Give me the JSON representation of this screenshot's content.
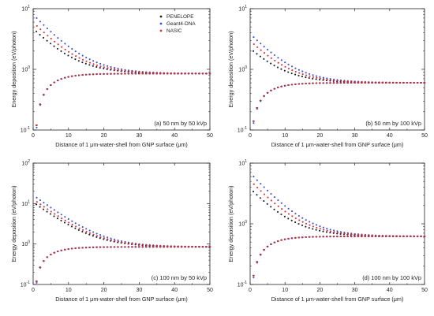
{
  "colors": {
    "penelope": "#1a1a2e",
    "geant4": "#3b4bd8",
    "nasic": "#d83030",
    "axis": "#222222"
  },
  "legend": {
    "position": "top-right of panel (a)",
    "entries": [
      "PENELOPE",
      "Geant4-DNA",
      "NASIC"
    ]
  },
  "chart_data": [
    {
      "type": "scatter",
      "yscale": "log",
      "grid": false,
      "panel_label": "(a) 50 nm by 50 kVp",
      "xlabel": "Distance of 1 μm-water-shell from GNP surface (μm)",
      "ylabel": "Energy deposition (eV/photon)",
      "xlim": [
        0,
        50
      ],
      "ylim": [
        0.1,
        10
      ],
      "xticks": [
        "0",
        "10",
        "20",
        "30",
        "40",
        "50"
      ],
      "yticks": [
        {
          "base": "10",
          "exp": "-1"
        },
        {
          "base": "10",
          "exp": "0"
        },
        {
          "base": "10",
          "exp": "1"
        }
      ],
      "x": [
        1,
        50
      ],
      "series": [
        {
          "name": "PENELOPE",
          "upper_start": 4.2,
          "lower_start": 0.12
        },
        {
          "name": "Geant4-DNA",
          "upper_start": 7.0,
          "lower_start": 0.11
        },
        {
          "name": "NASIC",
          "upper_start": 5.2,
          "lower_start": 0.12
        }
      ],
      "plateau": 0.85
    },
    {
      "type": "scatter",
      "yscale": "log",
      "grid": false,
      "panel_label": "(b) 50 nm by 100 kVp",
      "xlabel": "Distance of 1 μm-water-shell from GNP surface (μm)",
      "ylabel": "Energy deposition (eV/photon)",
      "xlim": [
        0,
        50
      ],
      "ylim": [
        0.1,
        10
      ],
      "xticks": [
        "0",
        "10",
        "20",
        "30",
        "40",
        "50"
      ],
      "yticks": [
        {
          "base": "10",
          "exp": "-1"
        },
        {
          "base": "10",
          "exp": "0"
        },
        {
          "base": "10",
          "exp": "1"
        }
      ],
      "x": [
        1,
        50
      ],
      "series": [
        {
          "name": "PENELOPE",
          "upper_start": 2.0,
          "lower_start": 0.14
        },
        {
          "name": "Geant4-DNA",
          "upper_start": 3.4,
          "lower_start": 0.13
        },
        {
          "name": "NASIC",
          "upper_start": 2.6,
          "lower_start": 0.14
        }
      ],
      "plateau": 0.6
    },
    {
      "type": "scatter",
      "yscale": "log",
      "grid": false,
      "panel_label": "(c) 100 nm by 50 kVp",
      "xlabel": "Distance of 1 μm-water-shell from GNP surface (μm)",
      "ylabel": "Energy deposition (eV/photon)",
      "xlim": [
        0,
        50
      ],
      "ylim": [
        0.1,
        100
      ],
      "xticks": [
        "0",
        "10",
        "20",
        "30",
        "40",
        "50"
      ],
      "yticks": [
        {
          "base": "10",
          "exp": "-1"
        },
        {
          "base": "10",
          "exp": "0"
        },
        {
          "base": "10",
          "exp": "1"
        },
        {
          "base": "10",
          "exp": "2"
        }
      ],
      "x": [
        1,
        50
      ],
      "series": [
        {
          "name": "PENELOPE",
          "upper_start": 9.5,
          "lower_start": 0.12
        },
        {
          "name": "Geant4-DNA",
          "upper_start": 14.0,
          "lower_start": 0.11
        },
        {
          "name": "NASIC",
          "upper_start": 11.0,
          "lower_start": 0.12
        }
      ],
      "plateau": 0.85
    },
    {
      "type": "scatter",
      "yscale": "log",
      "grid": false,
      "panel_label": "(d) 100 nm by 100 kVp",
      "xlabel": "Distance of 1 μm-water-shell from GNP surface (μm)",
      "ylabel": "Energy deposition (eV/photon)",
      "xlim": [
        0,
        50
      ],
      "ylim": [
        0.1,
        10
      ],
      "xticks": [
        "0",
        "10",
        "20",
        "30",
        "40",
        "50"
      ],
      "yticks": [
        {
          "base": "10",
          "exp": "-1"
        },
        {
          "base": "10",
          "exp": "0"
        },
        {
          "base": "10",
          "exp": "1"
        }
      ],
      "x": [
        1,
        50
      ],
      "series": [
        {
          "name": "PENELOPE",
          "upper_start": 3.4,
          "lower_start": 0.14
        },
        {
          "name": "Geant4-DNA",
          "upper_start": 6.0,
          "lower_start": 0.13
        },
        {
          "name": "NASIC",
          "upper_start": 4.5,
          "lower_start": 0.14
        }
      ],
      "plateau": 0.62
    }
  ]
}
